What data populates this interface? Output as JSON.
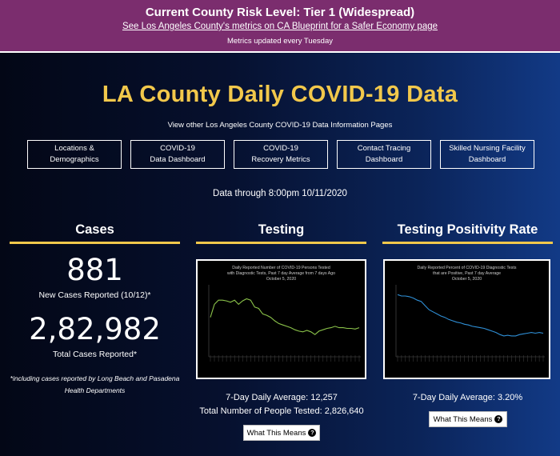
{
  "banner": {
    "title": "Current County Risk Level: Tier 1 (Widespread)",
    "link": "See Los Angeles County's metrics on CA Blueprint for a Safer Economy page",
    "note": "Metrics updated every Tuesday",
    "color": "#7b2d6e"
  },
  "header": {
    "title": "LA County Daily COVID-19 Data",
    "sub_link": "View other Los Angeles County COVID-19 Data Information Pages",
    "data_through": "Data through 8:00pm 10/11/2020"
  },
  "nav": [
    {
      "label": "Locations &\nDemographics"
    },
    {
      "label": "COVID-19\nData Dashboard"
    },
    {
      "label": "COVID-19\nRecovery Metrics"
    },
    {
      "label": "Contact Tracing\nDashboard"
    },
    {
      "label": "Skilled Nursing Facility\nDashboard"
    }
  ],
  "cases": {
    "heading": "Cases",
    "new_cases": "881",
    "new_cases_label": "New Cases Reported (10/12)*",
    "total_cases": "2,82,982",
    "total_cases_label": "Total Cases Reported*",
    "footnote": "*including cases reported by Long Beach and Pasadena Health Departments"
  },
  "testing": {
    "heading": "Testing",
    "daily_average": "7-Day Daily Average: 12,257",
    "total_tested": "Total Number of People Tested: 2,826,640",
    "button": "What This Means",
    "chart_title_1": "Daily Reported Number of COVID-19 Persons Tested",
    "chart_title_2": "with Diagnostic Tests, Past 7 day Average from 7 days Ago",
    "chart_title_3": "October 5, 2020",
    "line_color": "#8bc34a"
  },
  "positivity": {
    "heading": "Testing Positivity Rate",
    "daily_average": "7-Day Daily Average: 3.20%",
    "button": "What This Means",
    "chart_title_1": "Daily Reported Percent of COVID-19 Diagnostic Tests",
    "chart_title_2": "that are Positive, Past 7 day Average",
    "chart_title_3": "October 5, 2020",
    "line_color": "#2f8fd6"
  },
  "colors": {
    "accent": "#f2c84b",
    "background_dark": "#030716",
    "background_blue": "#123a86"
  },
  "chart_data": [
    {
      "type": "line",
      "title": "Daily Reported Number of COVID-19 Persons Tested with Diagnostic Tests, Past 7 day Average from 7 days Ago October 5, 2020",
      "xlabel": "",
      "ylabel": "",
      "grid": false,
      "series": [
        {
          "values": [
            0.55,
            0.74,
            0.8,
            0.8,
            0.79,
            0.77,
            0.8,
            0.74,
            0.79,
            0.82,
            0.8,
            0.7,
            0.68,
            0.6,
            0.58,
            0.55,
            0.5,
            0.46,
            0.44,
            0.42,
            0.4,
            0.37,
            0.35,
            0.34,
            0.36,
            0.34,
            0.3,
            0.35,
            0.37,
            0.39,
            0.4,
            0.42,
            0.4,
            0.4,
            0.39,
            0.39,
            0.38,
            0.4
          ]
        }
      ]
    },
    {
      "type": "line",
      "title": "Daily Reported Percent of COVID-19 Diagnostic Tests that are Positive, Past 7 day Average October 5, 2020",
      "xlabel": "",
      "ylabel": "",
      "grid": false,
      "series": [
        {
          "values": [
            0.88,
            0.86,
            0.86,
            0.85,
            0.83,
            0.8,
            0.78,
            0.72,
            0.66,
            0.63,
            0.6,
            0.57,
            0.55,
            0.52,
            0.5,
            0.48,
            0.47,
            0.45,
            0.44,
            0.42,
            0.41,
            0.4,
            0.39,
            0.37,
            0.35,
            0.33,
            0.3,
            0.28,
            0.29,
            0.28,
            0.28,
            0.3,
            0.31,
            0.32,
            0.33,
            0.32,
            0.33,
            0.32
          ]
        }
      ]
    }
  ]
}
